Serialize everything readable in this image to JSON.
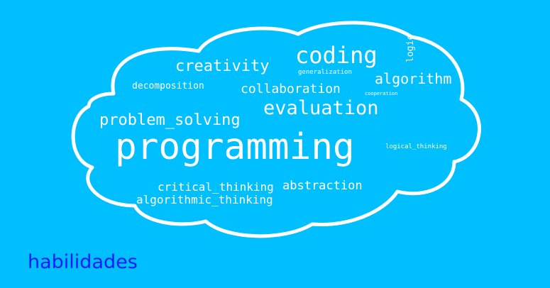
{
  "colors": {
    "background": "#00bfff",
    "cloud_outline": "#ffffff",
    "word_color": "#ffffff",
    "caption_color": "#1a1aff"
  },
  "words": {
    "programming": "programming",
    "coding": "coding",
    "evaluation": "evaluation",
    "problem_solving": "problem_solving",
    "creativity": "creativity",
    "algorithm": "algorithm",
    "collaboration": "collaboration",
    "decomposition": "decomposition",
    "abstraction": "abstraction",
    "critical_thinking": "critical_thinking",
    "algorithmic_thinking": "algorithmic_thinking",
    "logic": "logic",
    "generalization": "generalization",
    "cooperation": "cooperation",
    "logical_thinking": "logical_thinking"
  },
  "caption": "habilidades"
}
